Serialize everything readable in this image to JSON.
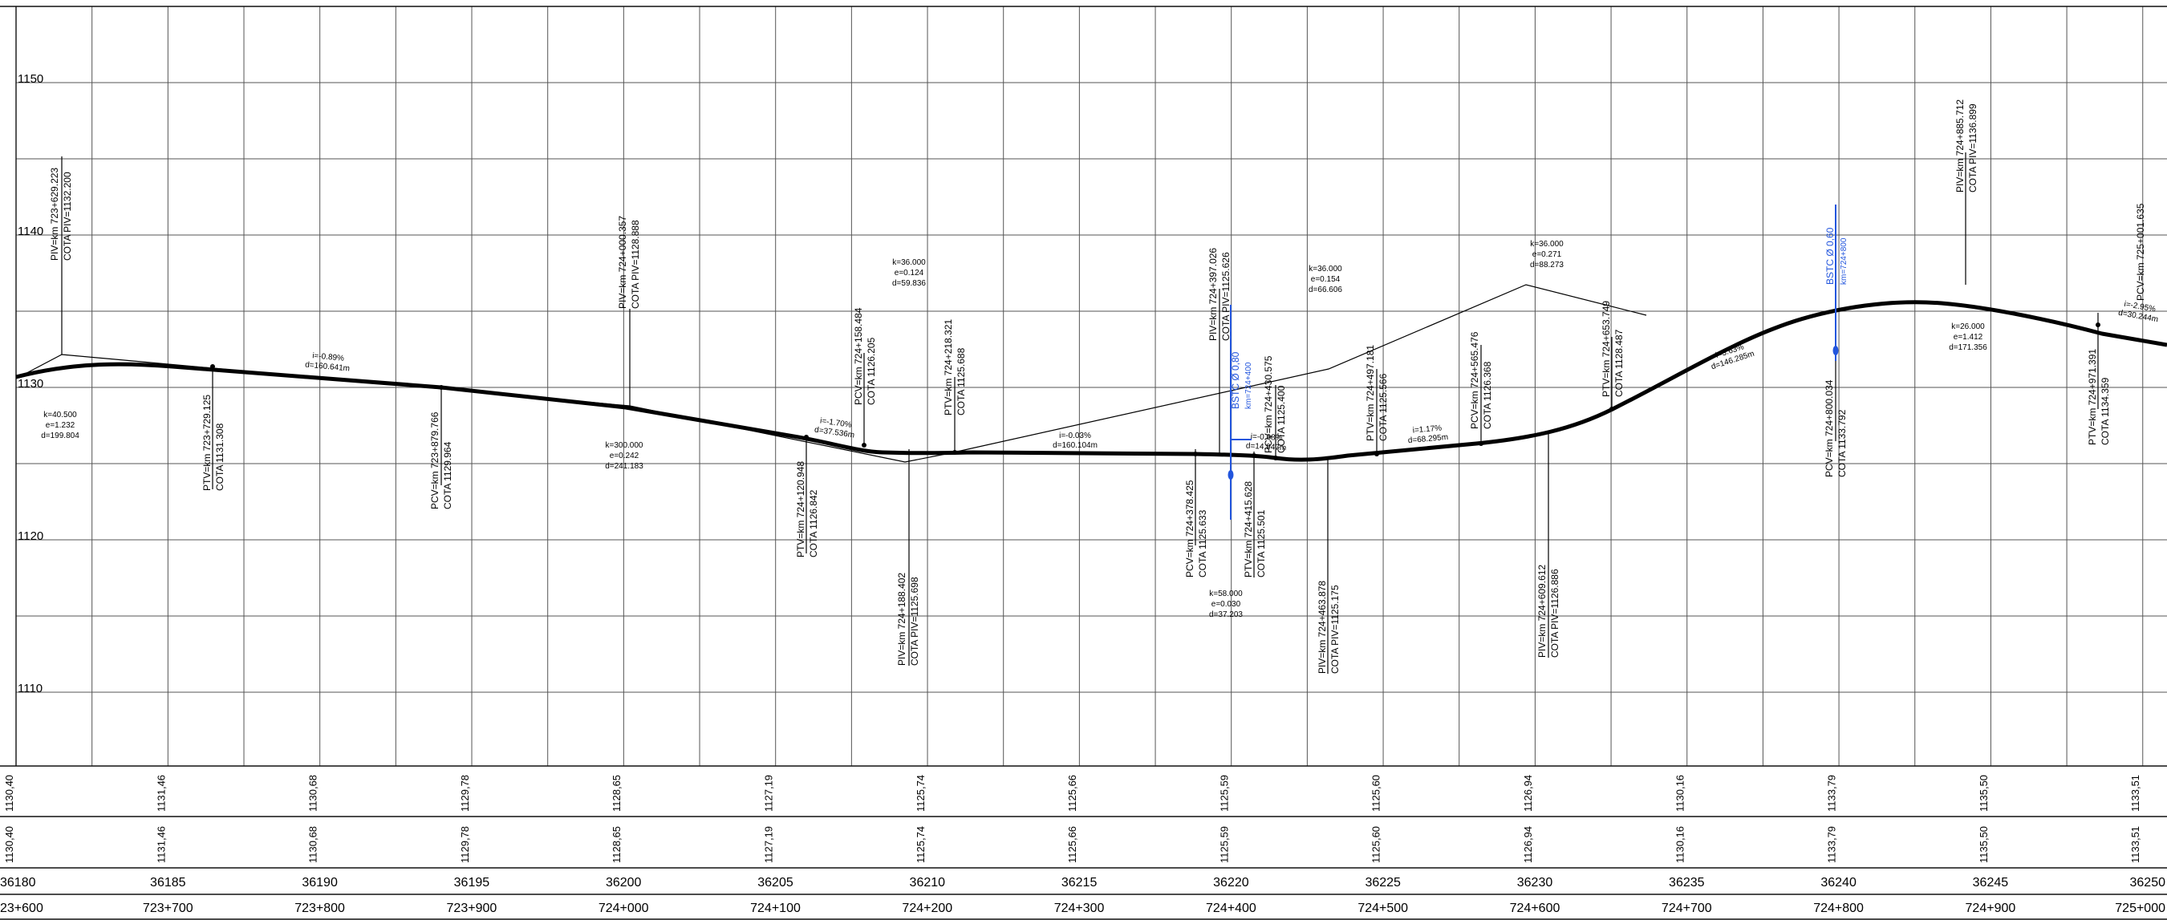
{
  "elevation_axis": [
    "1150",
    "1140",
    "1130",
    "1120",
    "1110"
  ],
  "bottom_rows": {
    "row_a": [
      "1130,40",
      "1131,46",
      "1130,68",
      "1129,78",
      "1128,65",
      "1127,19",
      "1125,74",
      "1125,66",
      "1125,59",
      "1125,60",
      "1126,94",
      "1130,16",
      "1133,79",
      "1135,50",
      "1133,51"
    ],
    "row_b": [
      "1130,40",
      "1131,46",
      "1130,68",
      "1129,78",
      "1128,65",
      "1127,19",
      "1125,74",
      "1125,66",
      "1125,59",
      "1125,60",
      "1126,94",
      "1130,16",
      "1133,79",
      "1135,50",
      "1133,51"
    ],
    "distances": [
      "36180",
      "36185",
      "36190",
      "36195",
      "36200",
      "36205",
      "36210",
      "36215",
      "36220",
      "36225",
      "36230",
      "36235",
      "36240",
      "36245",
      "36250"
    ],
    "stations": [
      "23+600",
      "723+700",
      "723+800",
      "723+900",
      "724+000",
      "724+100",
      "724+200",
      "724+300",
      "724+400",
      "724+500",
      "724+600",
      "724+700",
      "724+800",
      "724+900",
      "725+000"
    ]
  },
  "points": [
    {
      "id": "piv-723-629",
      "l1": "PIV=km 723+629.223",
      "l2": "COTA PIV=1132.200"
    },
    {
      "id": "ptv-723-729",
      "l1": "PTV=km 723+729.125",
      "l2": "COTA 1131.308"
    },
    {
      "id": "pcv-723-879",
      "l1": "PCV=km 723+879.766",
      "l2": "COTA 1129.964"
    },
    {
      "id": "piv-724-000",
      "l1": "PIV=km 724+000.357",
      "l2": "COTA PIV=1128.888"
    },
    {
      "id": "ptv-724-120",
      "l1": "PTV=km 724+120.948",
      "l2": "COTA 1126.842"
    },
    {
      "id": "pcv-724-158",
      "l1": "PCV=km 724+158.484",
      "l2": "COTA 1126.205"
    },
    {
      "id": "piv-724-188",
      "l1": "PIV=km 724+188.402",
      "l2": "COTA PIV=1125.698"
    },
    {
      "id": "ptv-724-218",
      "l1": "PTV=km 724+218.321",
      "l2": "COTA 1125.688"
    },
    {
      "id": "pcv-724-378",
      "l1": "PCV=km 724+378.425",
      "l2": "COTA 1125.633"
    },
    {
      "id": "piv-724-397",
      "l1": "PIV=km 724+397.026",
      "l2": "COTA PIV=1125.626"
    },
    {
      "id": "ptv-724-415",
      "l1": "PTV=km 724+415.628",
      "l2": "COTA 1125.501"
    },
    {
      "id": "pcv-724-430",
      "l1": "PCV=km 724+430.575",
      "l2": "COTA 1125.400"
    },
    {
      "id": "piv-724-463",
      "l1": "PIV=km 724+463.878",
      "l2": "COTA PIV=1125.175"
    },
    {
      "id": "ptv-724-497",
      "l1": "PTV=km 724+497.181",
      "l2": "COTA 1125.566"
    },
    {
      "id": "pcv-724-565",
      "l1": "PCV=km 724+565.476",
      "l2": "COTA 1126.368"
    },
    {
      "id": "piv-724-609",
      "l1": "PIV=km 724+609.612",
      "l2": "COTA PIV=1126.886"
    },
    {
      "id": "ptv-724-653",
      "l1": "PTV=km 724+653.749",
      "l2": "COTA 1128.487"
    },
    {
      "id": "pcv-724-800",
      "l1": "PCV=km 724+800.034",
      "l2": "COTA 1133.792"
    },
    {
      "id": "piv-724-885",
      "l1": "PIV=km 724+885.712",
      "l2": "COTA PIV=1136.899"
    },
    {
      "id": "ptv-724-971",
      "l1": "PTV=km 724+971.391",
      "l2": "COTA 1134.359"
    },
    {
      "id": "pcv-725-001",
      "l1": "PCV=km 725+001.635",
      "l2": ""
    }
  ],
  "curves": [
    {
      "k": "k=40.500",
      "e": "e=1.232",
      "d": "d=199.804"
    },
    {
      "k": "k=300.000",
      "e": "e=0.242",
      "d": "d=241.183"
    },
    {
      "k": "k=36.000",
      "e": "e=0.124",
      "d": "d=59.836"
    },
    {
      "k": "k=58.000",
      "e": "e=0.030",
      "d": "d=37.203"
    },
    {
      "k": "k=36.000",
      "e": "e=0.154",
      "d": "d=66.606"
    },
    {
      "k": "k=36.000",
      "e": "e=0.271",
      "d": "d=88.273"
    },
    {
      "k": "k=26.000",
      "e": "e=1.412",
      "d": "d=171.356"
    }
  ],
  "grades": [
    {
      "i": "i=-0.89%",
      "d": "d=160.641m"
    },
    {
      "i": "i=-1.70%",
      "d": "d=37.536m"
    },
    {
      "i": "i=-0.03%",
      "d": "d=160.104m"
    },
    {
      "i": "i=-0.68%",
      "d": "d=14.947m"
    },
    {
      "i": "i=1.17%",
      "d": "d=68.295m"
    },
    {
      "i": "i=3.63%",
      "d": "d=146.285m"
    },
    {
      "i": "i=-2.95%",
      "d": "d=30.244m"
    }
  ],
  "culverts": [
    {
      "type": "BSTC Ø 0,80",
      "km": "km=724+400"
    },
    {
      "type": "BSTC Ø 0,60",
      "km": "km=724+800"
    }
  ]
}
